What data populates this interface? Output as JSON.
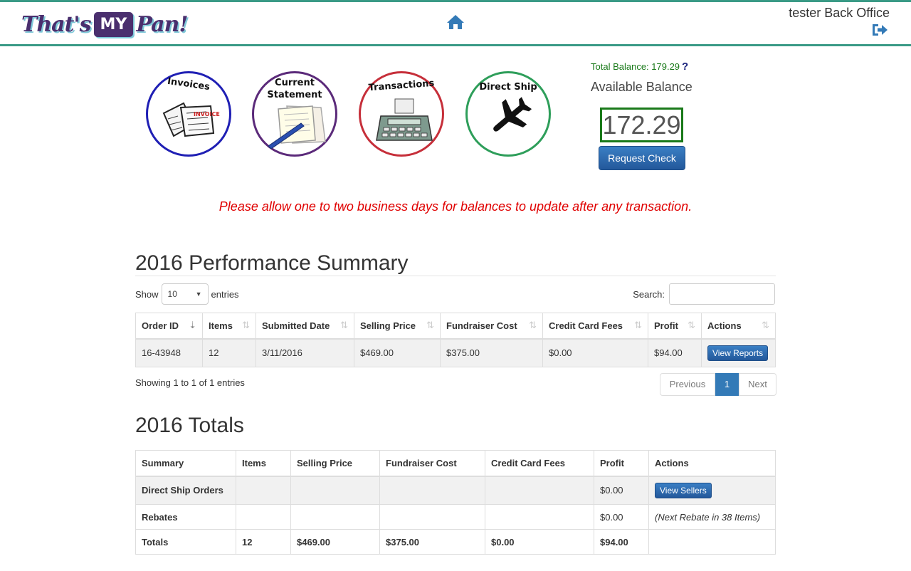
{
  "header": {
    "logo_left": "That's",
    "logo_box": "MY",
    "logo_right": "Pan!",
    "home_icon": "home-icon",
    "user_name": "tester Back Office",
    "logout_icon": "sign-out-icon"
  },
  "shortcuts": [
    {
      "label": "Invoices",
      "color": "#1f1fb4",
      "icon": "invoice-papers-icon"
    },
    {
      "label": "Current Statement",
      "label_line1": "Current",
      "label_line2": "Statement",
      "color": "#5b2a7a",
      "icon": "statement-pen-icon"
    },
    {
      "label": "Transactions",
      "color": "#c62f3a",
      "icon": "calculator-icon"
    },
    {
      "label": "Direct Ship",
      "color": "#2e9e5a",
      "icon": "airplane-icon"
    }
  ],
  "balance": {
    "total_label": "Total Balance: 179.29",
    "help": "?",
    "available_label": "Available Balance",
    "available_value": "172.29",
    "request_button": "Request Check"
  },
  "notice": "Please allow one to two business days for balances to update after any transaction.",
  "performance": {
    "title": "2016 Performance Summary",
    "show_label": "Show",
    "entries_value": "10",
    "entries_label": "entries",
    "search_label": "Search:",
    "columns": [
      "Order ID",
      "Items",
      "Submitted Date",
      "Selling Price",
      "Fundraiser Cost",
      "Credit Card Fees",
      "Profit",
      "Actions"
    ],
    "rows": [
      {
        "order_id": "16-43948",
        "items": "12",
        "submitted": "3/11/2016",
        "selling": "$469.00",
        "cost": "$375.00",
        "fees": "$0.00",
        "profit": "$94.00",
        "action": "View Reports"
      }
    ],
    "showing": "Showing 1 to 1 of 1 entries",
    "pager": {
      "prev": "Previous",
      "current": "1",
      "next": "Next"
    }
  },
  "totals": {
    "title": "2016 Totals",
    "columns": [
      "Summary",
      "Items",
      "Selling Price",
      "Fundraiser Cost",
      "Credit Card Fees",
      "Profit",
      "Actions"
    ],
    "rows": [
      {
        "summary": "Direct Ship Orders",
        "items": "",
        "selling": "",
        "cost": "",
        "fees": "",
        "profit": "$0.00",
        "action": "View Sellers"
      },
      {
        "summary": "Rebates",
        "items": "",
        "selling": "",
        "cost": "",
        "fees": "",
        "profit": "$0.00",
        "action": "(Next Rebate in 38 Items)"
      },
      {
        "summary": "Totals",
        "items": "12",
        "selling": "$469.00",
        "cost": "$375.00",
        "fees": "$0.00",
        "profit": "$94.00",
        "action": ""
      }
    ]
  }
}
